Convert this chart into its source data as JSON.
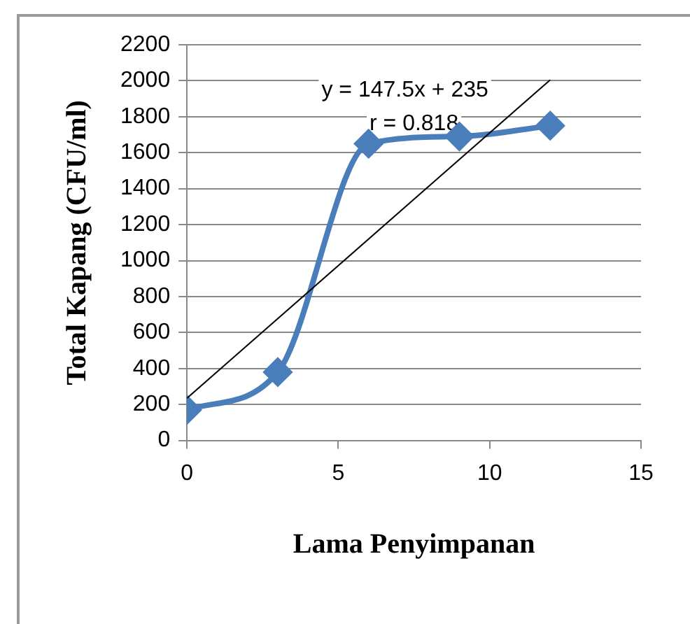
{
  "chart_data": {
    "type": "line",
    "xlabel": "Lama Penyimpanan",
    "ylabel": "Total Kapang (CFU/ml)",
    "x": [
      0,
      3,
      6,
      9,
      12
    ],
    "series": [
      {
        "color": "#4a7ebb",
        "values": [
          170,
          380,
          1650,
          1690,
          1750
        ],
        "marker": "diamond"
      },
      {
        "type": "line",
        "color": "#000000",
        "x": [
          0,
          12
        ],
        "values": [
          235,
          2005
        ],
        "marker": "none"
      }
    ],
    "xlim": [
      0,
      15
    ],
    "xticks": [
      0,
      5,
      10,
      15
    ],
    "ylim": [
      0,
      2200
    ],
    "yticks": [
      0,
      200,
      400,
      600,
      800,
      1000,
      1200,
      1400,
      1600,
      1800,
      2000,
      2200
    ],
    "grid": "y",
    "legend": false,
    "annotations": [
      "y = 147.5x + 235",
      "r = 0.818"
    ]
  }
}
